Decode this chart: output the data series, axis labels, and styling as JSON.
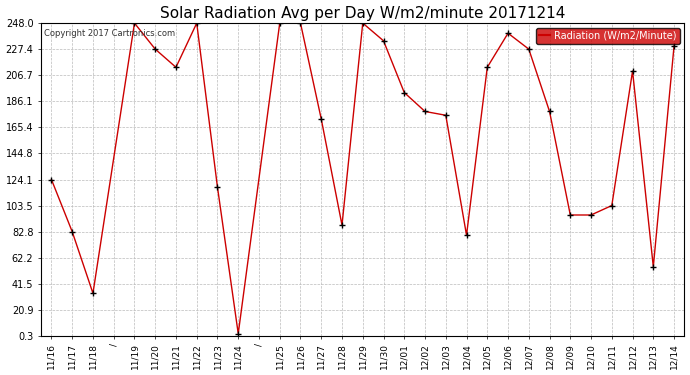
{
  "title": "Solar Radiation Avg per Day W/m2/minute 20171214",
  "copyright": "Copyright 2017 Cartronics.com",
  "legend_label": "Radiation (W/m2/Minute)",
  "dates": [
    "11/16",
    "11/17",
    "11/18",
    "/",
    "11/19",
    "11/20",
    "11/21",
    "11/22",
    "11/23",
    "11/24",
    "/",
    "11/25",
    "11/26",
    "11/27",
    "11/28",
    "11/29",
    "11/30",
    "12/01",
    "12/02",
    "12/03",
    "12/04",
    "12/05",
    "12/06",
    "12/07",
    "12/08",
    "12/09",
    "12/10",
    "12/11",
    "12/12",
    "12/13",
    "12/14"
  ],
  "values": [
    124.1,
    82.8,
    34.0,
    null,
    248.0,
    227.4,
    213.0,
    248.0,
    118.0,
    2.0,
    null,
    248.0,
    248.0,
    172.0,
    88.0,
    248.0,
    234.0,
    193.0,
    178.0,
    175.0,
    80.0,
    213.0,
    240.0,
    227.4,
    178.0,
    96.0,
    96.0,
    103.5,
    210.0,
    55.0,
    230.0
  ],
  "line_color": "#cc0000",
  "marker_color": "#000000",
  "bg_color": "#ffffff",
  "grid_color": "#bbbbbb",
  "yticks": [
    0.3,
    20.9,
    41.5,
    62.2,
    82.8,
    103.5,
    124.1,
    144.8,
    165.4,
    186.1,
    206.7,
    227.4,
    248.0
  ],
  "ylim": [
    0.3,
    248.0
  ],
  "title_fontsize": 11,
  "legend_bg": "#cc0000",
  "legend_text_color": "#ffffff",
  "figwidth": 6.9,
  "figheight": 3.75,
  "dpi": 100
}
